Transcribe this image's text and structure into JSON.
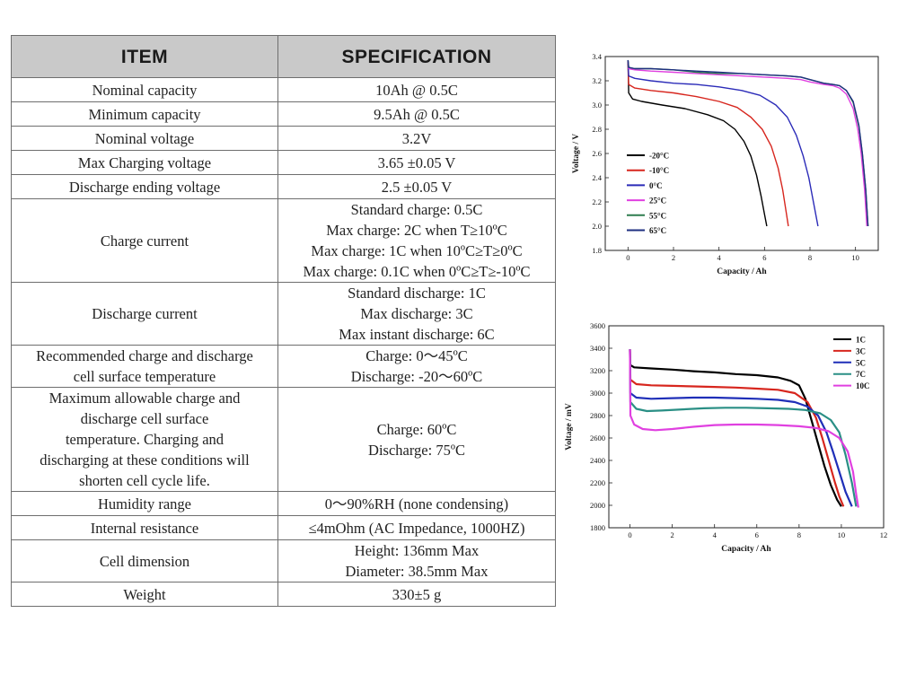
{
  "table": {
    "headers": [
      "ITEM",
      "SPECIFICATION"
    ],
    "rows": [
      {
        "item": [
          "Nominal capacity"
        ],
        "spec": [
          "10Ah @ 0.5C"
        ]
      },
      {
        "item": [
          "Minimum capacity"
        ],
        "spec": [
          "9.5Ah @ 0.5C"
        ]
      },
      {
        "item": [
          "Nominal voltage"
        ],
        "spec": [
          "3.2V"
        ]
      },
      {
        "item": [
          "Max Charging voltage"
        ],
        "spec": [
          "3.65 ±0.05 V"
        ]
      },
      {
        "item": [
          "Discharge ending voltage"
        ],
        "spec": [
          "2.5 ±0.05 V"
        ]
      },
      {
        "item": [
          "Charge current"
        ],
        "spec": [
          "Standard charge: 0.5C",
          "Max charge: 2C when T≥10ºC",
          "Max charge: 1C when 10ºC≥T≥0ºC",
          "Max charge: 0.1C when 0ºC≥T≥-10ºC"
        ]
      },
      {
        "item": [
          "Discharge current"
        ],
        "spec": [
          "Standard discharge: 1C",
          "Max discharge: 3C",
          "Max instant discharge: 6C"
        ]
      },
      {
        "item": [
          "Recommended charge and discharge",
          "cell surface temperature"
        ],
        "spec": [
          "Charge: 0～45ºC",
          "Discharge: -20～60ºC"
        ]
      },
      {
        "item": [
          "Maximum allowable charge and",
          "discharge cell surface",
          "temperature. Charging and",
          "discharging at these conditions will",
          "shorten cell cycle life."
        ],
        "spec": [
          "Charge: 60ºC",
          "Discharge: 75ºC"
        ]
      },
      {
        "item": [
          "Humidity range"
        ],
        "spec": [
          "0～90%RH (none condensing)"
        ]
      },
      {
        "item": [
          "Internal resistance"
        ],
        "spec": [
          "≤4mOhm (AC Impedance, 1000HZ)"
        ]
      },
      {
        "item": [
          "Cell dimension"
        ],
        "spec": [
          "Height: 136mm Max",
          "Diameter: 38.5mm Max"
        ]
      },
      {
        "item": [
          "Weight"
        ],
        "spec": [
          "330±5 g"
        ]
      }
    ]
  },
  "chart_data": [
    {
      "type": "line",
      "title": "",
      "xlabel": "Capacity / Ah",
      "ylabel": "Voltage / V",
      "xlim": [
        -1,
        11
      ],
      "ylim": [
        1.8,
        3.4
      ],
      "xticks": [
        "0",
        "2",
        "4",
        "6",
        "8",
        "10"
      ],
      "yticks": [
        "1.8",
        "2.0",
        "2.2",
        "2.4",
        "2.6",
        "2.8",
        "3.0",
        "3.2",
        "3.4"
      ],
      "legend_position": "bottom-left",
      "series": [
        {
          "name": "-20°C",
          "color": "#000000",
          "x": [
            0,
            0.03,
            0.2,
            0.6,
            1.5,
            2.5,
            3.5,
            4.2,
            4.7,
            5.1,
            5.4,
            5.65,
            5.85,
            6.0,
            6.1
          ],
          "y": [
            3.37,
            3.1,
            3.05,
            3.03,
            3.0,
            2.97,
            2.92,
            2.87,
            2.8,
            2.7,
            2.58,
            2.42,
            2.25,
            2.1,
            2.0
          ]
        },
        {
          "name": "-10°C",
          "color": "#d7261e",
          "x": [
            0,
            0.03,
            0.3,
            1.0,
            2.0,
            3.0,
            4.0,
            4.8,
            5.4,
            5.9,
            6.3,
            6.6,
            6.8,
            6.95,
            7.05
          ],
          "y": [
            3.37,
            3.17,
            3.14,
            3.12,
            3.1,
            3.07,
            3.03,
            2.98,
            2.9,
            2.8,
            2.66,
            2.48,
            2.3,
            2.12,
            2.0
          ]
        },
        {
          "name": "0°C",
          "color": "#2b2bb8",
          "x": [
            0,
            0.03,
            0.3,
            1.0,
            2.0,
            3.0,
            4.0,
            5.0,
            5.8,
            6.5,
            7.0,
            7.4,
            7.7,
            7.95,
            8.15,
            8.35
          ],
          "y": [
            3.37,
            3.24,
            3.22,
            3.2,
            3.18,
            3.17,
            3.15,
            3.12,
            3.08,
            3.0,
            2.9,
            2.75,
            2.58,
            2.4,
            2.2,
            2.0
          ]
        },
        {
          "name": "25°C",
          "color": "#e040e0",
          "x": [
            0,
            0.03,
            0.3,
            1.0,
            2.0,
            3.0,
            4.0,
            5.0,
            6.0,
            7.0,
            7.6,
            8.0,
            8.6,
            9.0,
            9.3,
            9.6,
            9.9,
            10.1,
            10.25,
            10.4,
            10.5
          ],
          "y": [
            3.37,
            3.3,
            3.29,
            3.28,
            3.27,
            3.26,
            3.25,
            3.24,
            3.23,
            3.22,
            3.21,
            3.19,
            3.17,
            3.16,
            3.14,
            3.09,
            2.97,
            2.8,
            2.6,
            2.3,
            2.0
          ]
        },
        {
          "name": "55°C",
          "color": "#2e7d4f",
          "x": [
            0,
            0.03,
            0.3,
            1.0,
            2.0,
            3.0,
            4.0,
            5.0,
            6.0,
            7.0,
            7.6,
            8.0,
            8.6,
            9.0,
            9.3,
            9.6,
            9.9,
            10.15,
            10.3,
            10.45,
            10.55
          ],
          "y": [
            3.37,
            3.31,
            3.3,
            3.3,
            3.29,
            3.27,
            3.26,
            3.26,
            3.25,
            3.24,
            3.23,
            3.21,
            3.18,
            3.17,
            3.16,
            3.12,
            3.02,
            2.82,
            2.6,
            2.3,
            2.0
          ]
        },
        {
          "name": "65°C",
          "color": "#1f2f80",
          "x": [
            0,
            0.03,
            0.3,
            1.0,
            2.0,
            3.0,
            4.0,
            5.0,
            6.0,
            7.0,
            7.6,
            8.0,
            8.6,
            9.0,
            9.3,
            9.6,
            9.9,
            10.15,
            10.3,
            10.45,
            10.55
          ],
          "y": [
            3.37,
            3.31,
            3.3,
            3.3,
            3.29,
            3.28,
            3.27,
            3.26,
            3.25,
            3.24,
            3.23,
            3.21,
            3.18,
            3.17,
            3.16,
            3.12,
            3.03,
            2.83,
            2.6,
            2.3,
            2.0
          ]
        }
      ]
    },
    {
      "type": "line",
      "title": "",
      "xlabel": "Capacity / Ah",
      "ylabel": "Voltage / mV",
      "xlim": [
        -1,
        12
      ],
      "ylim": [
        1800,
        3600
      ],
      "xticks": [
        "0",
        "2",
        "4",
        "6",
        "8",
        "10",
        "12"
      ],
      "yticks": [
        "1800",
        "2000",
        "2200",
        "2400",
        "2600",
        "2800",
        "3000",
        "3200",
        "3400",
        "3600"
      ],
      "legend_position": "top-right",
      "series": [
        {
          "name": "1C",
          "color": "#000000",
          "x": [
            0,
            0.02,
            0.2,
            1.0,
            2.0,
            3.0,
            4.0,
            5.0,
            6.0,
            7.0,
            7.6,
            8.0,
            8.3,
            8.6,
            8.9,
            9.2,
            9.5,
            9.8,
            10.0
          ],
          "y": [
            3390,
            3250,
            3230,
            3220,
            3210,
            3195,
            3185,
            3170,
            3160,
            3140,
            3110,
            3070,
            2950,
            2750,
            2550,
            2350,
            2180,
            2050,
            1990
          ]
        },
        {
          "name": "3C",
          "color": "#d7261e",
          "x": [
            0,
            0.02,
            0.3,
            1.0,
            2.0,
            3.0,
            4.0,
            5.0,
            6.0,
            7.0,
            7.8,
            8.4,
            8.8,
            9.1,
            9.4,
            9.7,
            9.9,
            10.1
          ],
          "y": [
            3390,
            3120,
            3080,
            3070,
            3065,
            3060,
            3055,
            3050,
            3040,
            3030,
            3000,
            2920,
            2780,
            2600,
            2400,
            2200,
            2080,
            1990
          ]
        },
        {
          "name": "5C",
          "color": "#1f2fb8",
          "x": [
            0,
            0.02,
            0.3,
            1.0,
            2.0,
            3.0,
            4.0,
            5.0,
            6.0,
            7.0,
            7.8,
            8.4,
            8.9,
            9.3,
            9.6,
            9.9,
            10.2,
            10.5
          ],
          "y": [
            3390,
            3000,
            2960,
            2950,
            2955,
            2960,
            2960,
            2955,
            2950,
            2940,
            2920,
            2880,
            2800,
            2650,
            2480,
            2300,
            2120,
            1990
          ]
        },
        {
          "name": "7C",
          "color": "#2a8f85",
          "x": [
            0,
            0.02,
            0.3,
            0.8,
            1.5,
            2.5,
            3.5,
            4.5,
            5.5,
            6.5,
            7.5,
            8.3,
            9.0,
            9.5,
            9.9,
            10.2,
            10.5,
            10.7
          ],
          "y": [
            3390,
            2920,
            2860,
            2840,
            2845,
            2855,
            2865,
            2870,
            2870,
            2865,
            2860,
            2850,
            2820,
            2760,
            2650,
            2450,
            2200,
            1990
          ]
        },
        {
          "name": "10C",
          "color": "#e040e0",
          "x": [
            0,
            0.02,
            0.2,
            0.6,
            1.2,
            2.0,
            3.0,
            4.0,
            5.0,
            6.0,
            7.0,
            8.0,
            8.8,
            9.4,
            9.9,
            10.3,
            10.55,
            10.7,
            10.8
          ],
          "y": [
            3390,
            2800,
            2720,
            2680,
            2670,
            2680,
            2700,
            2715,
            2720,
            2720,
            2715,
            2705,
            2690,
            2660,
            2600,
            2480,
            2300,
            2100,
            1980
          ]
        }
      ]
    }
  ]
}
